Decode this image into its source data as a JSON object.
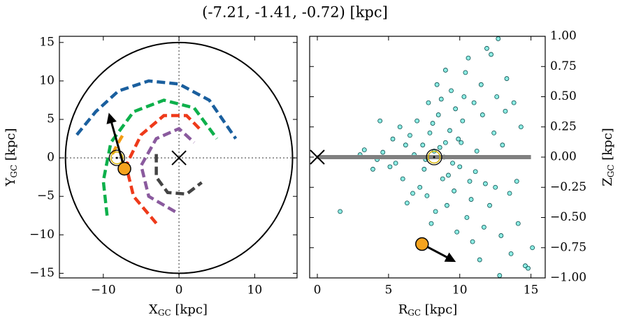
{
  "title": "(-7.21, -1.41, -0.72) [kpc]",
  "chart_data": [
    {
      "type": "map",
      "xlabel": {
        "main": "X",
        "sub": "GC",
        "rest": " [kpc]"
      },
      "ylabel": {
        "main": "Y",
        "sub": "GC",
        "rest": " [kpc]"
      },
      "xlim": [
        -15.8,
        15.6
      ],
      "ylim": [
        -15.6,
        15.8
      ],
      "xticks": [
        {
          "value": -10,
          "label": "−10"
        },
        0,
        10
      ],
      "yticks": [
        {
          "value": -15,
          "label": "−15"
        },
        {
          "value": -10,
          "label": "−10"
        },
        {
          "value": -5,
          "label": "−5"
        },
        0,
        5,
        10,
        15
      ],
      "circle_radius": 15,
      "center": [
        0,
        0
      ],
      "arms": [
        {
          "color": "#1a5f9e",
          "x": [
            -13.5,
            -11,
            -8,
            -4,
            0,
            4,
            7.5
          ],
          "y": [
            3,
            6,
            8.7,
            10,
            9.6,
            7.5,
            2.5
          ]
        },
        {
          "color": "#0db04b",
          "x": [
            -9.5,
            -10,
            -9,
            -6,
            -2,
            2,
            5
          ],
          "y": [
            -7.5,
            -3,
            2,
            6,
            7.5,
            6.5,
            2.5
          ]
        },
        {
          "color": "#f39c12",
          "x": [
            -8.8,
            -8,
            -7.3
          ],
          "y": [
            0.5,
            2,
            3.2
          ]
        },
        {
          "color": "#ee3a1a",
          "x": [
            -3,
            -6,
            -7,
            -5,
            -2,
            1,
            3
          ],
          "y": [
            -8.5,
            -5,
            -1,
            3,
            5.5,
            5.5,
            3.5
          ]
        },
        {
          "color": "#8a5a9e",
          "x": [
            -0.5,
            -4,
            -5,
            -3,
            0,
            2
          ],
          "y": [
            -7,
            -5,
            -1,
            2.5,
            3.8,
            2
          ]
        },
        {
          "color": "#444444",
          "x": [
            -3,
            -3,
            -1.5,
            1,
            3
          ],
          "y": [
            0.5,
            -2.5,
            -4.5,
            -4.7,
            -3.2
          ]
        }
      ],
      "sun": [
        -8.2,
        0
      ],
      "source": [
        -7.21,
        -1.41
      ],
      "arrow_tip": [
        -9.2,
        5.6
      ]
    },
    {
      "type": "scatter",
      "xlabel": {
        "main": "R",
        "sub": "GC",
        "rest": " [kpc]"
      },
      "ylabel": {
        "main": "Z",
        "sub": "GC",
        "rest": " [kpc]"
      },
      "xlim": [
        -0.54,
        16.0
      ],
      "ylim": [
        -1,
        1
      ],
      "xticks": [
        0,
        5,
        10,
        15
      ],
      "yticks": [
        {
          "value": -1,
          "label": "−1.00"
        },
        {
          "value": -0.75,
          "label": "−0.75"
        },
        {
          "value": -0.5,
          "label": "−0.50"
        },
        {
          "value": -0.25,
          "label": "−0.25"
        },
        {
          "value": 0,
          "label": "0.00"
        },
        {
          "value": 0.25,
          "label": "0.25"
        },
        {
          "value": 0.5,
          "label": "0.50"
        },
        {
          "value": 0.75,
          "label": "0.75"
        },
        {
          "value": 1,
          "label": "1.00"
        }
      ],
      "stars": {
        "color": "#40e0d0",
        "x": [
          8.2,
          7.5,
          9.0,
          6.8,
          8.8,
          7.9,
          10.2,
          5.5,
          6.2,
          9.6,
          11.0,
          12.1,
          7.2,
          8.5,
          9.3,
          10.8,
          4.6,
          5.1,
          6.5,
          7.7,
          8.1,
          9.9,
          11.5,
          12.6,
          13.2,
          10.5,
          11.8,
          9.1,
          8.7,
          7.0,
          6.0,
          5.8,
          4.2,
          3.3,
          3.9,
          12.9,
          13.8,
          14.1,
          14.6,
          13.5,
          11.2,
          10.0,
          9.4,
          8.9,
          8.3,
          7.4,
          6.7,
          12.4,
          11.7,
          10.4,
          9.7,
          8.0,
          6.3,
          5.3,
          12.2,
          13.0,
          14.3,
          11.9,
          10.9,
          10.1,
          9.2,
          8.6,
          7.8,
          13.6,
          14.8,
          15.1,
          12.7,
          11.4,
          10.6,
          9.8,
          1.6,
          3.0,
          4.4,
          7.6,
          8.4,
          9.5,
          10.3,
          11.1,
          12.5,
          13.3,
          14.0,
          9.0,
          11.6,
          10.7,
          12.8
        ],
        "y": [
          0.05,
          -0.1,
          0.12,
          0.02,
          -0.18,
          0.2,
          0.3,
          -0.05,
          0.1,
          -0.28,
          0.45,
          -0.4,
          -0.25,
          0.35,
          0.22,
          -0.35,
          0.04,
          -0.08,
          0.18,
          -0.32,
          0.28,
          0.15,
          0.6,
          0.5,
          0.38,
          -0.5,
          -0.22,
          -0.4,
          0.48,
          0.3,
          -0.18,
          0.25,
          -0.02,
          0.06,
          -0.1,
          -0.65,
          0.45,
          -0.55,
          -0.9,
          -0.3,
          0.05,
          -0.08,
          0.55,
          0.0,
          -0.45,
          0.1,
          -0.3,
          0.2,
          -0.58,
          0.7,
          0.4,
          -0.55,
          -0.38,
          0.15,
          0.85,
          0.1,
          0.25,
          0.9,
          -0.7,
          0.12,
          -0.15,
          0.08,
          0.45,
          -0.8,
          -0.92,
          -0.75,
          0.98,
          -0.85,
          0.82,
          -0.62,
          -0.45,
          0.02,
          0.3,
          -0.02,
          0.6,
          -0.05,
          0.5,
          -0.12,
          -0.25,
          0.65,
          -0.2,
          0.72,
          0.35,
          -0.2,
          -0.98
        ]
      },
      "disk_line": {
        "x": [
          0,
          15
        ],
        "y": [
          0,
          0
        ]
      },
      "center": [
        0,
        0
      ],
      "sun": [
        8.2,
        0
      ],
      "source": [
        7.35,
        -0.72
      ],
      "arrow_tip": [
        9.6,
        -0.86
      ]
    }
  ]
}
